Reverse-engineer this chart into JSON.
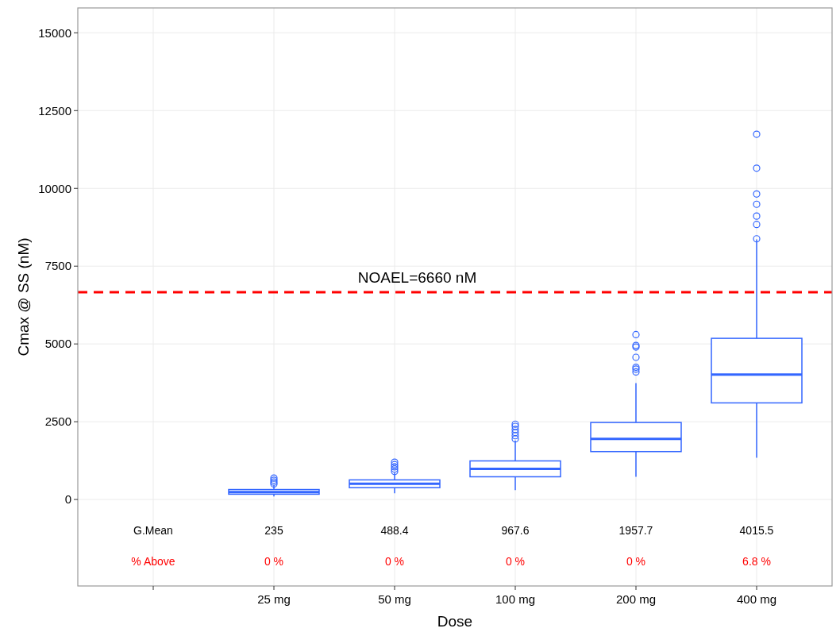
{
  "chart_data": {
    "type": "box",
    "xlabel": "Dose",
    "ylabel": "Cmax @ SS (nM)",
    "categories": [
      null,
      "25 mg",
      "50 mg",
      "100 mg",
      "200 mg",
      "400 mg"
    ],
    "series": [
      {
        "color": "#3366ff",
        "boxes": [
          null,
          {
            "low": 100,
            "q1": 170,
            "median": 235,
            "q3": 320,
            "high": 450,
            "outliers": [
              500,
              560,
              620,
              690
            ]
          },
          {
            "low": 200,
            "q1": 380,
            "median": 505,
            "q3": 630,
            "high": 860,
            "outliers": [
              900,
              980,
              1050,
              1120,
              1200
            ]
          },
          {
            "low": 300,
            "q1": 730,
            "median": 985,
            "q3": 1240,
            "high": 1900,
            "outliers": [
              1950,
              2050,
              2150,
              2250,
              2350,
              2420
            ]
          },
          {
            "low": 730,
            "q1": 1540,
            "median": 1945,
            "q3": 2475,
            "high": 3740,
            "outliers": [
              4100,
              4190,
              4250,
              4570,
              4900,
              4950,
              5300
            ]
          },
          {
            "low": 1340,
            "q1": 3105,
            "median": 4015,
            "q3": 5180,
            "high": 8360,
            "outliers": [
              8380,
              8840,
              9110,
              9490,
              9820,
              10650,
              11740
            ]
          }
        ]
      }
    ],
    "ylim": [
      -2780,
      15800
    ],
    "yticks": [
      0,
      2500,
      5000,
      7500,
      10000,
      12500,
      15000
    ],
    "grid": true,
    "ref_lines": [
      {
        "axis": "y",
        "value": 6660,
        "label": "NOAEL=6660 nM",
        "color": "#ff0000",
        "line_style": "dashed"
      }
    ],
    "annotations": [
      "G.Mean",
      "235",
      "488.4",
      "967.6",
      "1957.7",
      "4015.5",
      "% Above",
      "0 %",
      "0 %",
      "0 %",
      "0 %",
      "6.8 %"
    ]
  }
}
